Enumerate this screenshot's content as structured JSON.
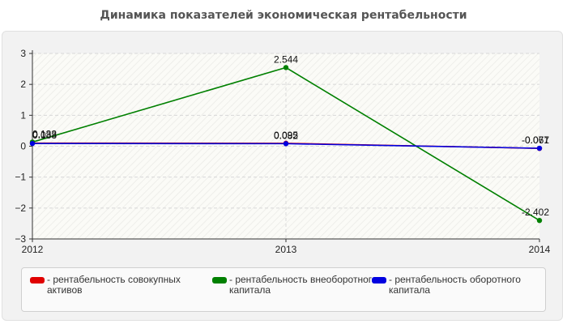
{
  "chart_data": {
    "type": "line",
    "title": "Динамика показателей экономическая рентабельности",
    "x": [
      "2012",
      "2013",
      "2014"
    ],
    "ylim": [
      -3,
      3
    ],
    "yticks": [
      "3",
      "2",
      "1",
      "0",
      "−1",
      "−2",
      "−3"
    ],
    "ytick_values": [
      3,
      2,
      1,
      0,
      -1,
      -2,
      -3
    ],
    "grid": true,
    "legend_position": "bottom",
    "series": [
      {
        "name": "рентабельность совокупных активов",
        "color": "#e00000",
        "values": [
          0.1,
          0.095,
          -0.071
        ],
        "labels": [
          "0.1",
          "0.095",
          "-0.071"
        ]
      },
      {
        "name": "рентабельность внеоборотного капитала",
        "color": "#008000",
        "values": [
          0.133,
          2.544,
          -2.402
        ],
        "labels": [
          "0.133",
          "2.544",
          "-2.402"
        ]
      },
      {
        "name": "рентабельность оборотного капитала",
        "color": "#0000e0",
        "values": [
          0.088,
          0.082,
          -0.067
        ],
        "labels": [
          "0.088",
          "0.082",
          "-0.067"
        ]
      }
    ]
  },
  "legend": {
    "items": [
      {
        "label": "- рентабельность совокупных активов",
        "color": "#e00000"
      },
      {
        "label": "- рентабельность внеоборотного капитала",
        "color": "#008000"
      },
      {
        "label": "- рентабельность оборотного капитала",
        "color": "#0000e0"
      }
    ]
  }
}
